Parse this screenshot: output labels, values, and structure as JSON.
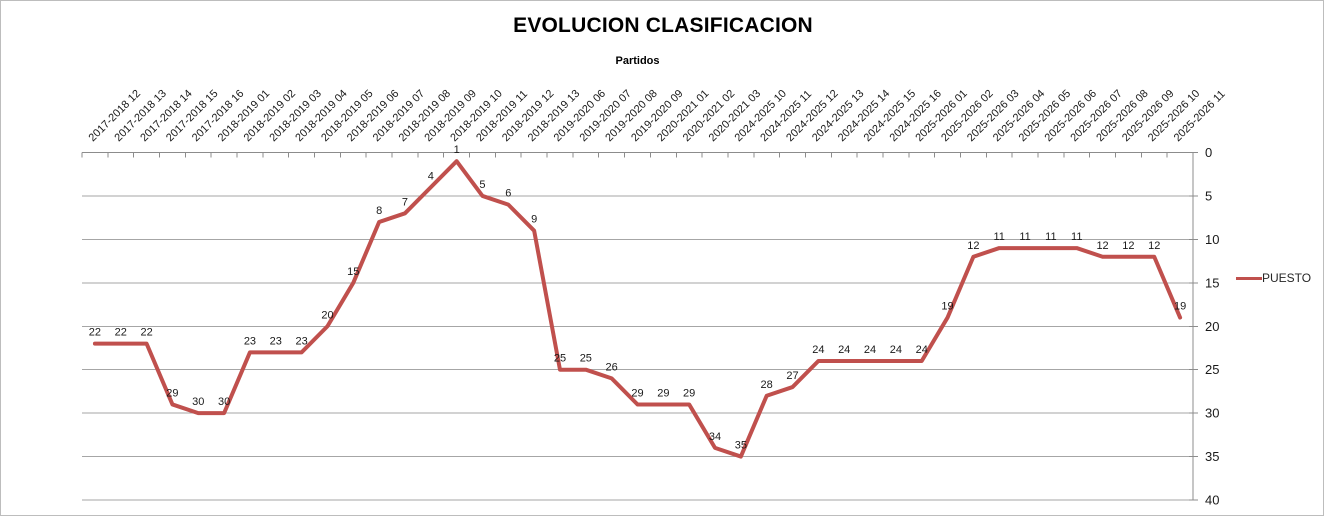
{
  "colors": {
    "series": "#C0504D",
    "grid": "#a6a6a6",
    "axis": "#8c8c8c",
    "text": "#000000"
  },
  "legend": {
    "label": "PUESTO"
  },
  "chart_data": {
    "type": "line",
    "title": "EVOLUCION CLASIFICACION",
    "xlabel": "Partidos",
    "ylabel": "",
    "grid": true,
    "data_labels": true,
    "legend_position": "right",
    "y_axis": {
      "min": 0,
      "max": 40,
      "ticks": [
        0,
        5,
        10,
        15,
        20,
        25,
        30,
        35,
        40
      ],
      "inverted": true,
      "side": "right"
    },
    "x_categories": [
      "2017-2018 12",
      "2017-2018 13",
      "2017-2018 14",
      "2017-2018 15",
      "2017-2018 16",
      "2018-2019 01",
      "2018-2019 02",
      "2018-2019 03",
      "2018-2019 04",
      "2018-2019 05",
      "2018-2019 06",
      "2018-2019 07",
      "2018-2019 08",
      "2018-2019 09",
      "2018-2019 10",
      "2018-2019 11",
      "2018-2019 12",
      "2018-2019 13",
      "2019-2020 06",
      "2019-2020 07",
      "2019-2020 08",
      "2019-2020 09",
      "2020-2021 01",
      "2020-2021 02",
      "2020-2021 03",
      "2024-2025 10",
      "2024-2025 11",
      "2024-2025 12",
      "2024-2025 13",
      "2024-2025 14",
      "2024-2025 15",
      "2024-2025 16",
      "2025-2026 01",
      "2025-2026 02",
      "2025-2026 03",
      "2025-2026 04",
      "2025-2026 05",
      "2025-2026 06",
      "2025-2026 07",
      "2025-2026 08",
      "2025-2026 09",
      "2025-2026 10",
      "2025-2026 11"
    ],
    "series": [
      {
        "name": "PUESTO",
        "color": "#C0504D",
        "values": [
          22,
          22,
          22,
          29,
          30,
          30,
          23,
          23,
          23,
          20,
          15,
          8,
          7,
          4,
          1,
          5,
          6,
          9,
          25,
          25,
          26,
          29,
          29,
          29,
          34,
          35,
          28,
          27,
          24,
          24,
          24,
          24,
          24,
          19,
          12,
          11,
          11,
          11,
          11,
          12,
          12,
          12,
          19
        ]
      }
    ]
  }
}
